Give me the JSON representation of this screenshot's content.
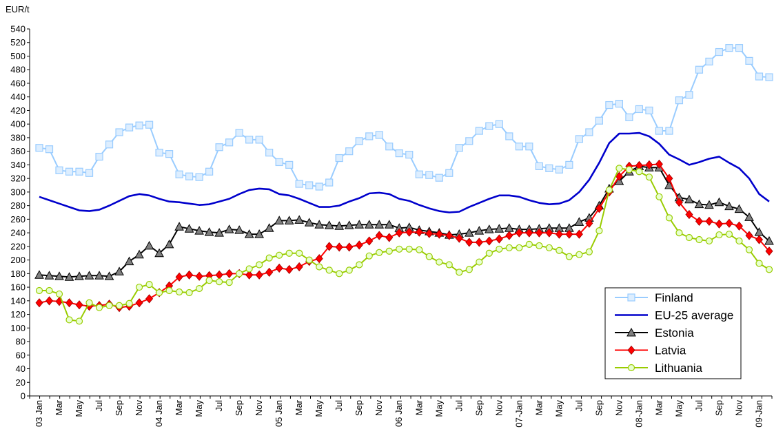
{
  "chart_data": {
    "type": "line",
    "y_label": "EUR/t",
    "categories": [
      "03 Jan",
      null,
      "Mar",
      null,
      "May",
      null,
      "Jul",
      null,
      "Sep",
      null,
      "Nov",
      null,
      "04 Jan",
      null,
      "Mar",
      null,
      "May",
      null,
      "Jul",
      null,
      "Sep",
      null,
      "Nov",
      null,
      "05 Jan",
      null,
      "Mar",
      null,
      "May",
      null,
      "Jul",
      null,
      "Sep",
      null,
      "Nov",
      null,
      "06 Jan",
      null,
      "Mar",
      null,
      "May",
      null,
      "Jul",
      null,
      "Sep",
      null,
      "Nov",
      null,
      "07-Jan",
      null,
      "Mar",
      null,
      "May",
      null,
      "Jul",
      null,
      "Sep",
      null,
      "Nov",
      null,
      "08-Jan",
      null,
      "Mar",
      null,
      "May",
      null,
      "Jul",
      null,
      "Sep",
      null,
      "Nov",
      null,
      "09-Jan",
      null
    ],
    "series": [
      {
        "name": "Finland",
        "color": "#99ccff",
        "marker": "square",
        "values": [
          365,
          363,
          332,
          330,
          330,
          328,
          352,
          370,
          388,
          395,
          398,
          399,
          358,
          356,
          326,
          323,
          322,
          330,
          366,
          373,
          387,
          377,
          377,
          358,
          344,
          340,
          312,
          310,
          308,
          314,
          350,
          360,
          375,
          382,
          384,
          367,
          357,
          355,
          326,
          325,
          321,
          328,
          365,
          375,
          390,
          397,
          400,
          382,
          367,
          367,
          338,
          335,
          333,
          340,
          378,
          388,
          405,
          428,
          430,
          410,
          422,
          420,
          390,
          390,
          435,
          443,
          480,
          492,
          506,
          512,
          512,
          493,
          470,
          469
        ]
      },
      {
        "name": "EU-25 average",
        "color": "#0000cc",
        "values": [
          293,
          288,
          283,
          278,
          273,
          272,
          274,
          280,
          287,
          294,
          297,
          295,
          290,
          286,
          285,
          283,
          281,
          282,
          286,
          290,
          297,
          303,
          305,
          304,
          297,
          295,
          290,
          284,
          278,
          278,
          280,
          286,
          291,
          298,
          299,
          297,
          290,
          287,
          281,
          276,
          272,
          270,
          271,
          278,
          284,
          290,
          295,
          295,
          293,
          288,
          284,
          282,
          283,
          288,
          300,
          318,
          343,
          372,
          386,
          386,
          387,
          382,
          371,
          355,
          348,
          340,
          344,
          349,
          352,
          343,
          335,
          320,
          297,
          286
        ]
      },
      {
        "name": "Estonia",
        "color": "#000000",
        "marker": "triangle",
        "values": [
          178,
          177,
          176,
          175,
          176,
          177,
          177,
          176,
          183,
          198,
          208,
          221,
          210,
          223,
          249,
          246,
          243,
          241,
          240,
          245,
          244,
          238,
          238,
          247,
          258,
          258,
          259,
          255,
          252,
          251,
          250,
          251,
          252,
          252,
          252,
          252,
          247,
          248,
          244,
          242,
          240,
          237,
          238,
          240,
          243,
          245,
          246,
          247,
          245,
          245,
          246,
          247,
          247,
          247,
          256,
          262,
          280,
          305,
          316,
          330,
          338,
          336,
          336,
          310,
          292,
          289,
          282,
          281,
          285,
          279,
          275,
          263,
          241,
          228
        ]
      },
      {
        "name": "Latvia",
        "color": "#ff0000",
        "marker": "diamond",
        "values": [
          137,
          140,
          139,
          137,
          134,
          132,
          133,
          135,
          130,
          132,
          137,
          143,
          152,
          162,
          175,
          178,
          176,
          177,
          178,
          180,
          180,
          178,
          178,
          182,
          188,
          186,
          190,
          198,
          202,
          220,
          219,
          219,
          222,
          228,
          236,
          233,
          240,
          241,
          241,
          239,
          238,
          236,
          232,
          226,
          226,
          228,
          231,
          236,
          240,
          240,
          240,
          240,
          238,
          238,
          238,
          254,
          276,
          300,
          323,
          338,
          339,
          340,
          341,
          320,
          285,
          267,
          257,
          257,
          253,
          254,
          250,
          236,
          230,
          213
        ]
      },
      {
        "name": "Lithuania",
        "color": "#99cc00",
        "marker": "circle",
        "values": [
          155,
          155,
          150,
          112,
          110,
          137,
          130,
          133,
          133,
          136,
          160,
          164,
          152,
          155,
          153,
          152,
          158,
          170,
          168,
          167,
          180,
          187,
          193,
          203,
          207,
          210,
          210,
          200,
          190,
          185,
          180,
          185,
          193,
          206,
          211,
          213,
          216,
          216,
          215,
          205,
          197,
          193,
          182,
          186,
          197,
          210,
          216,
          218,
          218,
          223,
          221,
          218,
          214,
          205,
          208,
          212,
          243,
          303,
          335,
          333,
          330,
          322,
          293,
          262,
          240,
          233,
          230,
          228,
          237,
          238,
          228,
          215,
          195,
          186
        ]
      }
    ],
    "ylim": [
      0,
      540
    ],
    "yticks": [
      0,
      20,
      40,
      60,
      80,
      100,
      120,
      140,
      160,
      180,
      200,
      220,
      240,
      260,
      280,
      300,
      320,
      340,
      360,
      380,
      400,
      420,
      440,
      460,
      480,
      500,
      520,
      540
    ],
    "grid": false,
    "legend": "lower right"
  }
}
